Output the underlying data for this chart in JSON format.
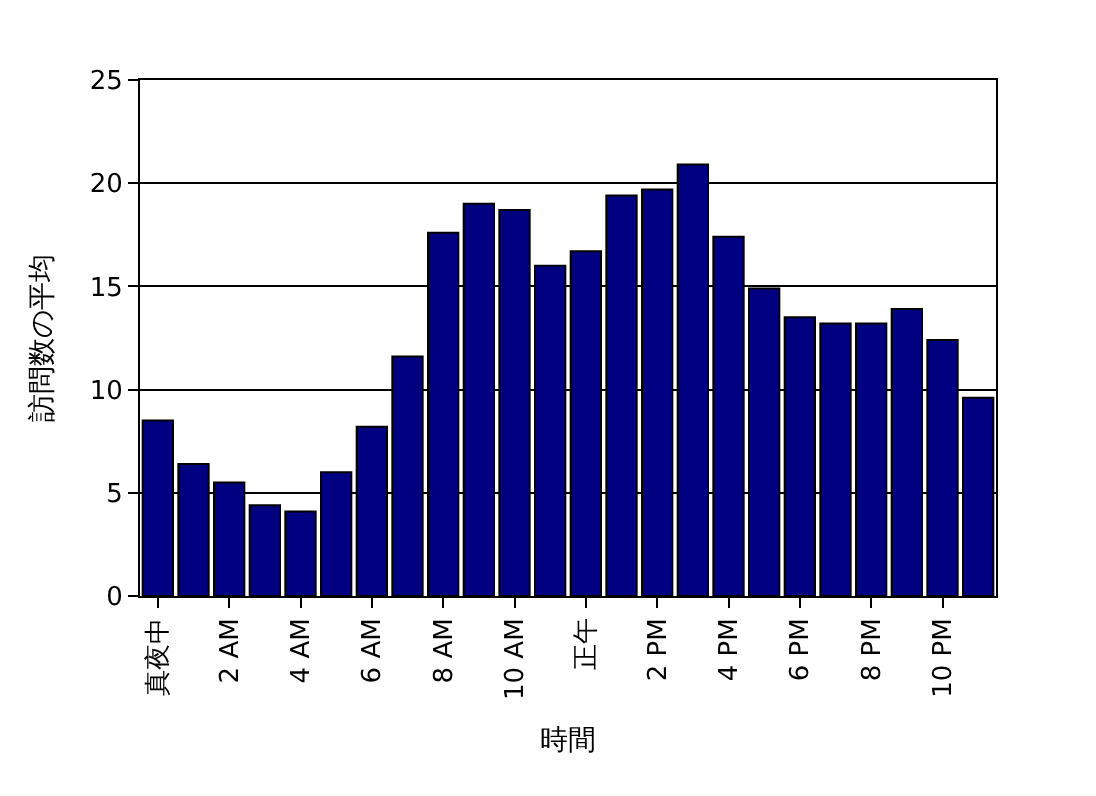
{
  "chart_data": {
    "type": "bar",
    "xlabel": "時間",
    "ylabel": "訪問数の平均",
    "categories": [
      "真夜中",
      null,
      "2 AM",
      null,
      "4 AM",
      null,
      "6 AM",
      null,
      "8 AM",
      null,
      "10 AM",
      null,
      "正午",
      null,
      "2 PM",
      null,
      "4 PM",
      null,
      "6 PM",
      null,
      "8 PM",
      null,
      "10 PM",
      null
    ],
    "series": [
      {
        "color": "#000080",
        "values": [
          8.5,
          6.4,
          5.5,
          4.4,
          4.1,
          6.0,
          8.2,
          11.6,
          17.6,
          19.0,
          18.7,
          16.0,
          16.7,
          19.4,
          19.7,
          20.9,
          17.4,
          14.9,
          13.5,
          13.2,
          13.2,
          13.9,
          12.4,
          9.6
        ]
      }
    ],
    "ylim": [
      0,
      25
    ],
    "yticks": [
      0,
      5,
      10,
      15,
      20,
      25
    ],
    "grid": "y",
    "legend": false
  }
}
